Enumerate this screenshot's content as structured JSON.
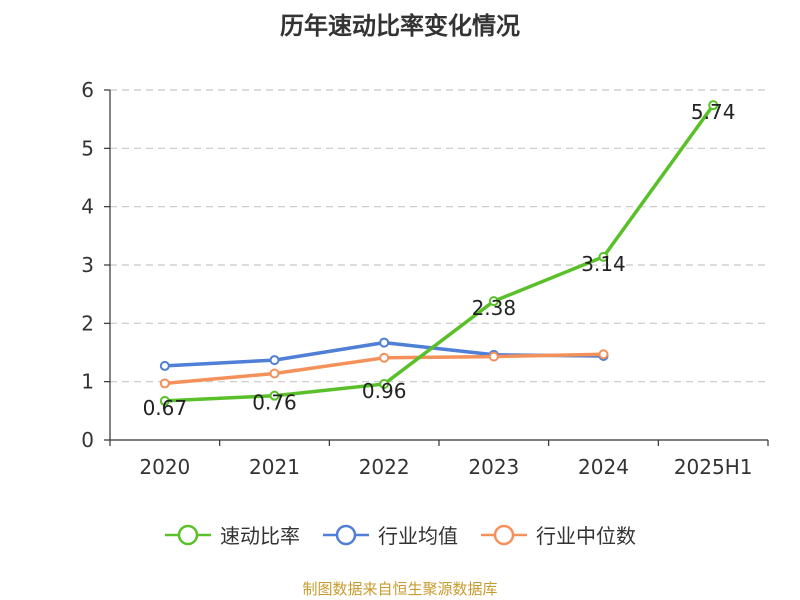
{
  "chart_data": {
    "type": "line",
    "title": "历年速动比率变化情况",
    "categories": [
      "2020",
      "2021",
      "2022",
      "2023",
      "2024",
      "2025H1"
    ],
    "y_ticks": [
      "0",
      "1",
      "2",
      "3",
      "4",
      "5",
      "6"
    ],
    "ylim": [
      0,
      6
    ],
    "grid": true,
    "legend_position": "bottom",
    "series": [
      {
        "name": "速动比率",
        "color": "#5ac02a",
        "values": [
          0.67,
          0.76,
          0.96,
          2.38,
          3.14,
          5.74
        ],
        "labels": [
          "0.67",
          "0.76",
          "0.96",
          "2.38",
          "3.14",
          "5.74"
        ]
      },
      {
        "name": "行业均值",
        "color": "#4f7fd6",
        "values": [
          1.27,
          1.37,
          1.67,
          1.46,
          1.44,
          null
        ]
      },
      {
        "name": "行业中位数",
        "color": "#f4915a",
        "values": [
          0.97,
          1.14,
          1.41,
          1.43,
          1.47,
          null
        ]
      }
    ]
  },
  "source_text": "制图数据来自恒生聚源数据库"
}
